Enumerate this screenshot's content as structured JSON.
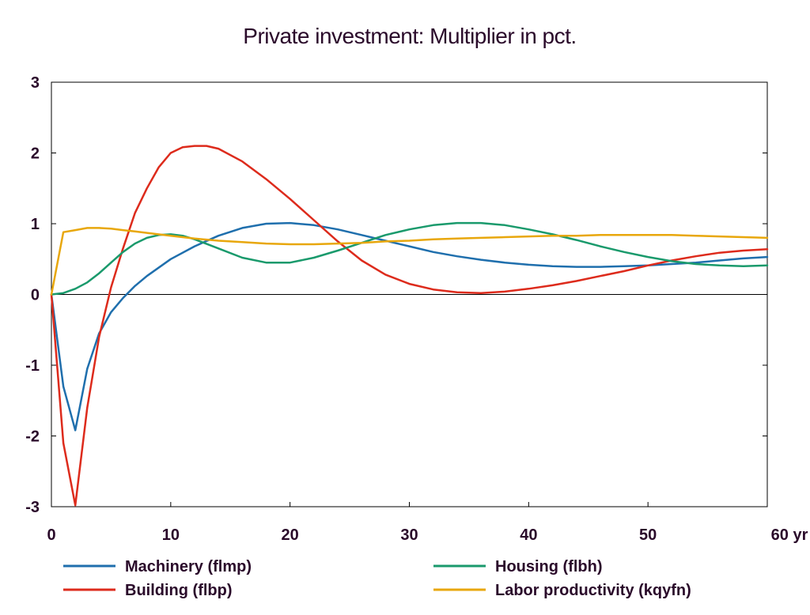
{
  "chart_data": {
    "type": "line",
    "title": "Private investment: Multiplier in pct.",
    "xlabel": "",
    "ylabel": "",
    "x_unit_label": "yr",
    "xlim": [
      0,
      60
    ],
    "ylim": [
      -3,
      3
    ],
    "x_ticks": [
      0,
      10,
      20,
      30,
      40,
      50,
      60
    ],
    "y_ticks": [
      3,
      2,
      1,
      0,
      -1,
      -2,
      -3
    ],
    "grid": false,
    "zero_line": true,
    "legend_position": "bottom",
    "series": [
      {
        "name": "Machinery (flmp)",
        "color": "#1f6fad",
        "x": [
          0,
          1,
          2,
          3,
          4,
          5,
          6,
          7,
          8,
          10,
          12,
          14,
          16,
          18,
          20,
          22,
          24,
          26,
          28,
          30,
          32,
          34,
          36,
          38,
          40,
          42,
          44,
          46,
          48,
          50,
          52,
          54,
          56,
          58,
          60
        ],
        "y": [
          0,
          -1.3,
          -1.92,
          -1.05,
          -0.55,
          -0.25,
          -0.05,
          0.12,
          0.26,
          0.5,
          0.68,
          0.83,
          0.94,
          1.0,
          1.01,
          0.98,
          0.92,
          0.84,
          0.76,
          0.68,
          0.6,
          0.54,
          0.49,
          0.45,
          0.42,
          0.4,
          0.39,
          0.39,
          0.4,
          0.41,
          0.43,
          0.45,
          0.48,
          0.51,
          0.53
        ]
      },
      {
        "name": "Building (flbp)",
        "color": "#dd2b1c",
        "x": [
          0,
          1,
          2,
          3,
          4,
          5,
          6,
          7,
          8,
          9,
          10,
          11,
          12,
          13,
          14,
          16,
          18,
          20,
          22,
          24,
          26,
          28,
          30,
          32,
          34,
          36,
          38,
          40,
          42,
          44,
          46,
          48,
          50,
          52,
          54,
          56,
          58,
          60
        ],
        "y": [
          0,
          -2.1,
          -2.98,
          -1.6,
          -0.6,
          0.1,
          0.65,
          1.15,
          1.5,
          1.8,
          2.0,
          2.08,
          2.1,
          2.1,
          2.06,
          1.88,
          1.63,
          1.35,
          1.05,
          0.75,
          0.48,
          0.28,
          0.15,
          0.07,
          0.03,
          0.02,
          0.04,
          0.08,
          0.13,
          0.19,
          0.26,
          0.33,
          0.41,
          0.48,
          0.54,
          0.59,
          0.62,
          0.64
        ]
      },
      {
        "name": "Housing (flbh)",
        "color": "#1a9a6c",
        "x": [
          0,
          1,
          2,
          3,
          4,
          5,
          6,
          7,
          8,
          9,
          10,
          11,
          12,
          14,
          16,
          18,
          20,
          22,
          24,
          26,
          28,
          30,
          32,
          34,
          36,
          38,
          40,
          42,
          44,
          46,
          48,
          50,
          52,
          54,
          56,
          58,
          60
        ],
        "y": [
          0,
          0.02,
          0.08,
          0.17,
          0.3,
          0.45,
          0.6,
          0.72,
          0.8,
          0.84,
          0.85,
          0.83,
          0.78,
          0.65,
          0.52,
          0.45,
          0.45,
          0.52,
          0.62,
          0.73,
          0.84,
          0.92,
          0.98,
          1.01,
          1.01,
          0.98,
          0.92,
          0.85,
          0.77,
          0.68,
          0.6,
          0.53,
          0.47,
          0.43,
          0.41,
          0.4,
          0.41
        ]
      },
      {
        "name": "Labor productivity (kqyfn)",
        "color": "#e8a70c",
        "x": [
          0,
          1,
          2,
          3,
          4,
          5,
          6,
          7,
          8,
          10,
          12,
          14,
          16,
          18,
          20,
          22,
          24,
          26,
          28,
          30,
          32,
          34,
          36,
          38,
          40,
          42,
          44,
          46,
          48,
          50,
          52,
          54,
          56,
          58,
          60
        ],
        "y": [
          0,
          0.88,
          0.91,
          0.94,
          0.94,
          0.93,
          0.91,
          0.89,
          0.87,
          0.83,
          0.79,
          0.76,
          0.74,
          0.72,
          0.71,
          0.71,
          0.72,
          0.73,
          0.75,
          0.76,
          0.78,
          0.79,
          0.8,
          0.81,
          0.82,
          0.83,
          0.83,
          0.84,
          0.84,
          0.84,
          0.84,
          0.83,
          0.82,
          0.81,
          0.8
        ]
      }
    ]
  }
}
